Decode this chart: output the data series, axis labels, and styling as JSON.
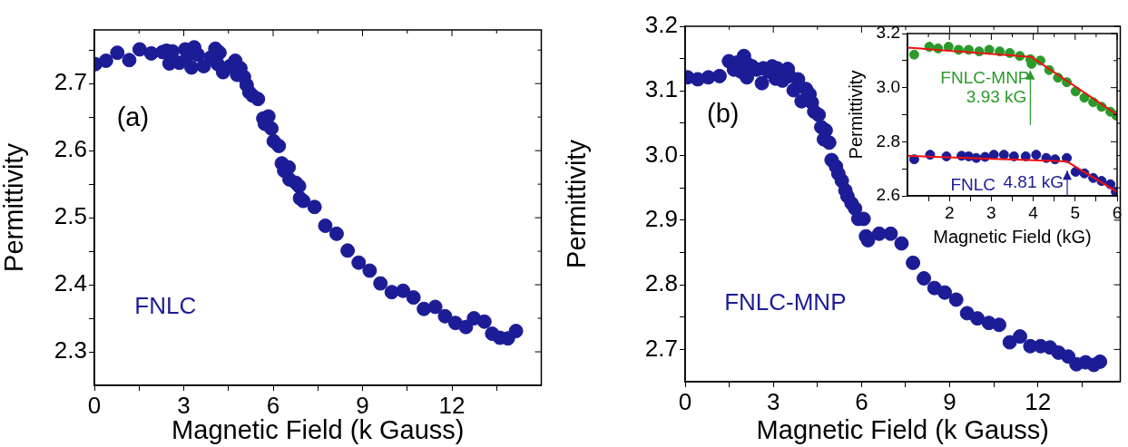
{
  "chart_data": [
    {
      "type": "scatter",
      "xlabel": "Magnetic Field (k Gauss)",
      "ylabel": "Permittivity",
      "annotations": [
        "(a)"
      ],
      "marker": "circle",
      "xlim": [
        0,
        15
      ],
      "xticks": [
        0,
        {
          "value": 1.5,
          "label": null
        },
        3,
        {
          "value": 4.5,
          "label": null
        },
        6,
        {
          "value": 7.5,
          "label": null
        },
        9,
        {
          "value": 10.5,
          "label": null
        },
        12,
        {
          "value": 13.5,
          "label": null
        }
      ],
      "ylim": [
        2.25,
        2.78
      ],
      "yticks": [
        2.3,
        {
          "value": 2.35,
          "label": null
        },
        2.4,
        {
          "value": 2.45,
          "label": null
        },
        2.5,
        {
          "value": 2.55,
          "label": null
        },
        2.6,
        {
          "value": 2.65,
          "label": null
        },
        2.7,
        {
          "value": 2.75,
          "label": null
        }
      ],
      "series": [
        {
          "name": "FNLC",
          "color": "#1c1c96",
          "x": [
            0.03,
            0.39,
            0.77,
            1.17,
            1.52,
            1.91,
            2.29,
            2.42,
            2.52,
            2.62,
            2.85,
            3.05,
            3.14,
            3.26,
            3.35,
            3.47,
            3.67,
            3.91,
            4.06,
            4.14,
            4.2,
            4.32,
            4.55,
            4.73,
            4.79,
            4.9,
            5.02,
            5.11,
            5.2,
            5.31,
            5.49,
            5.67,
            5.72,
            5.84,
            5.94,
            6.02,
            6.19,
            6.29,
            6.37,
            6.52,
            6.55,
            6.76,
            6.87,
            6.9,
            7.01,
            7.39,
            7.75,
            8.13,
            8.5,
            8.87,
            9.24,
            9.6,
            9.98,
            10.36,
            10.71,
            11.06,
            11.44,
            11.77,
            12.12,
            12.47,
            12.74,
            13.09,
            13.35,
            13.61,
            13.88,
            14.15
          ],
          "values": [
            2.729,
            2.734,
            2.746,
            2.735,
            2.751,
            2.745,
            2.747,
            2.749,
            2.73,
            2.748,
            2.731,
            2.751,
            2.742,
            2.724,
            2.754,
            2.743,
            2.726,
            2.739,
            2.752,
            2.729,
            2.746,
            2.717,
            2.726,
            2.734,
            2.713,
            2.723,
            2.71,
            2.698,
            2.687,
            2.682,
            2.677,
            2.648,
            2.64,
            2.651,
            2.633,
            2.614,
            2.607,
            2.581,
            2.57,
            2.575,
            2.557,
            2.552,
            2.547,
            2.529,
            2.525,
            2.516,
            2.488,
            2.476,
            2.451,
            2.433,
            2.421,
            2.402,
            2.389,
            2.391,
            2.381,
            2.364,
            2.367,
            2.353,
            2.343,
            2.337,
            2.35,
            2.345,
            2.327,
            2.321,
            2.32,
            2.331
          ]
        }
      ]
    },
    {
      "type": "scatter",
      "xlabel": "Magnetic Field (k Gauss)",
      "ylabel": "Permittivity",
      "annotations": [
        "(b)"
      ],
      "marker": "circle",
      "xlim": [
        0,
        14.8
      ],
      "xticks": [
        0,
        {
          "value": 1.5,
          "label": null
        },
        3,
        {
          "value": 4.5,
          "label": null
        },
        6,
        {
          "value": 7.5,
          "label": null
        },
        9,
        {
          "value": 10.5,
          "label": null
        },
        12,
        {
          "value": 13.5,
          "label": null
        }
      ],
      "ylim": [
        2.65,
        3.2
      ],
      "yticks": [
        2.7,
        {
          "value": 2.75,
          "label": null
        },
        2.8,
        {
          "value": 2.85,
          "label": null
        },
        2.9,
        {
          "value": 2.95,
          "label": null
        },
        {
          "value": 3,
          "label": "3.0"
        },
        {
          "value": 3.05,
          "label": null
        },
        3.1,
        {
          "value": 3.15,
          "label": null
        },
        3.2
      ],
      "series": [
        {
          "name": "FNLC-MNP",
          "color": "#1c1c96",
          "x": [
            0.08,
            0.43,
            0.79,
            1.17,
            1.49,
            1.66,
            1.78,
            1.9,
            2.0,
            2.1,
            2.14,
            2.28,
            2.43,
            2.61,
            2.66,
            2.84,
            2.96,
            3.08,
            3.13,
            3.31,
            3.49,
            3.55,
            3.69,
            3.84,
            3.96,
            4.11,
            4.23,
            4.31,
            4.39,
            4.54,
            4.63,
            4.72,
            4.78,
            4.9,
            4.98,
            5.13,
            5.21,
            5.33,
            5.45,
            5.52,
            5.66,
            5.78,
            5.89,
            6.07,
            6.15,
            6.22,
            6.6,
            6.99,
            7.36,
            7.75,
            8.12,
            8.48,
            8.83,
            9.22,
            9.59,
            9.94,
            10.33,
            10.68,
            11.04,
            11.39,
            11.74,
            12.09,
            12.41,
            12.7,
            13.03,
            13.31,
            13.62,
            13.9,
            14.11
          ],
          "values": [
            3.121,
            3.118,
            3.121,
            3.123,
            3.146,
            3.133,
            3.144,
            3.13,
            3.154,
            3.121,
            3.141,
            3.138,
            3.133,
            3.112,
            3.135,
            3.13,
            3.138,
            3.119,
            3.135,
            3.116,
            3.134,
            3.123,
            3.101,
            3.118,
            3.084,
            3.103,
            3.095,
            3.082,
            3.068,
            3.063,
            3.044,
            3.025,
            3.039,
            3.02,
            2.993,
            2.983,
            2.972,
            2.961,
            2.946,
            2.937,
            2.926,
            2.918,
            2.902,
            2.902,
            2.875,
            2.869,
            2.879,
            2.879,
            2.864,
            2.834,
            2.81,
            2.795,
            2.788,
            2.777,
            2.756,
            2.748,
            2.741,
            2.738,
            2.711,
            2.72,
            2.705,
            2.705,
            2.703,
            2.695,
            2.689,
            2.677,
            2.68,
            2.676,
            2.681
          ]
        }
      ]
    },
    {
      "type": "scatter",
      "xlabel": "Magnetic Field (kG)",
      "ylabel": "Permittivity",
      "marker": "circle",
      "annotations": [
        {
          "text": "3.93 kG",
          "x": 3.93,
          "y": 3.09
        },
        {
          "text": "4.81 kG",
          "x": 4.81,
          "y": 2.72
        }
      ],
      "xlim": [
        1,
        6
      ],
      "xticks": [
        {
          "value": 1.5,
          "label": null
        },
        2,
        {
          "value": 2.5,
          "label": null
        },
        3,
        {
          "value": 3.5,
          "label": null
        },
        4,
        {
          "value": 4.5,
          "label": null
        },
        5,
        {
          "value": 5.5,
          "label": null
        },
        6
      ],
      "ylim": [
        2.6,
        3.2
      ],
      "yticks": [
        2.6,
        {
          "value": 2.7,
          "label": null
        },
        2.8,
        {
          "value": 2.9,
          "label": null
        },
        {
          "value": 3,
          "label": "3.0"
        },
        {
          "value": 3.1,
          "label": null
        },
        3.2
      ],
      "series": [
        {
          "name": "FNLC-MNP",
          "color": "#2a9a2a",
          "x": [
            1.16,
            1.52,
            1.73,
            1.98,
            2.22,
            2.46,
            2.71,
            2.95,
            3.2,
            3.44,
            3.68,
            3.93,
            3.96,
            4.17,
            4.38,
            4.59,
            4.8,
            5.01,
            5.22,
            5.43,
            5.63,
            5.84,
            5.98
          ],
          "values": [
            3.122,
            3.151,
            3.145,
            3.151,
            3.14,
            3.14,
            3.134,
            3.14,
            3.134,
            3.128,
            3.117,
            3.105,
            3.088,
            3.1,
            3.065,
            3.037,
            3.02,
            2.986,
            2.963,
            2.946,
            2.929,
            2.911,
            2.897
          ]
        },
        {
          "name": "FNLC",
          "color": "#1c1c96",
          "x": [
            1.16,
            1.54,
            1.93,
            2.29,
            2.46,
            2.64,
            2.85,
            3.06,
            3.3,
            3.54,
            3.82,
            4.07,
            4.31,
            4.52,
            4.8,
            5.01,
            5.22,
            5.43,
            5.63,
            5.84,
            5.97
          ],
          "values": [
            2.735,
            2.752,
            2.746,
            2.748,
            2.746,
            2.74,
            2.744,
            2.752,
            2.752,
            2.746,
            2.746,
            2.752,
            2.74,
            2.735,
            2.74,
            2.689,
            2.683,
            2.666,
            2.655,
            2.643,
            2.615
          ]
        },
        {
          "type": "line",
          "marker": "none",
          "color": "#ee1111",
          "x": [
            1,
            3.95,
            6
          ],
          "values": [
            3.148,
            3.114,
            2.9
          ]
        },
        {
          "type": "line",
          "marker": "none",
          "color": "#ee1111",
          "x": [
            1,
            4.8,
            6
          ],
          "values": [
            2.748,
            2.727,
            2.615
          ]
        }
      ]
    }
  ]
}
